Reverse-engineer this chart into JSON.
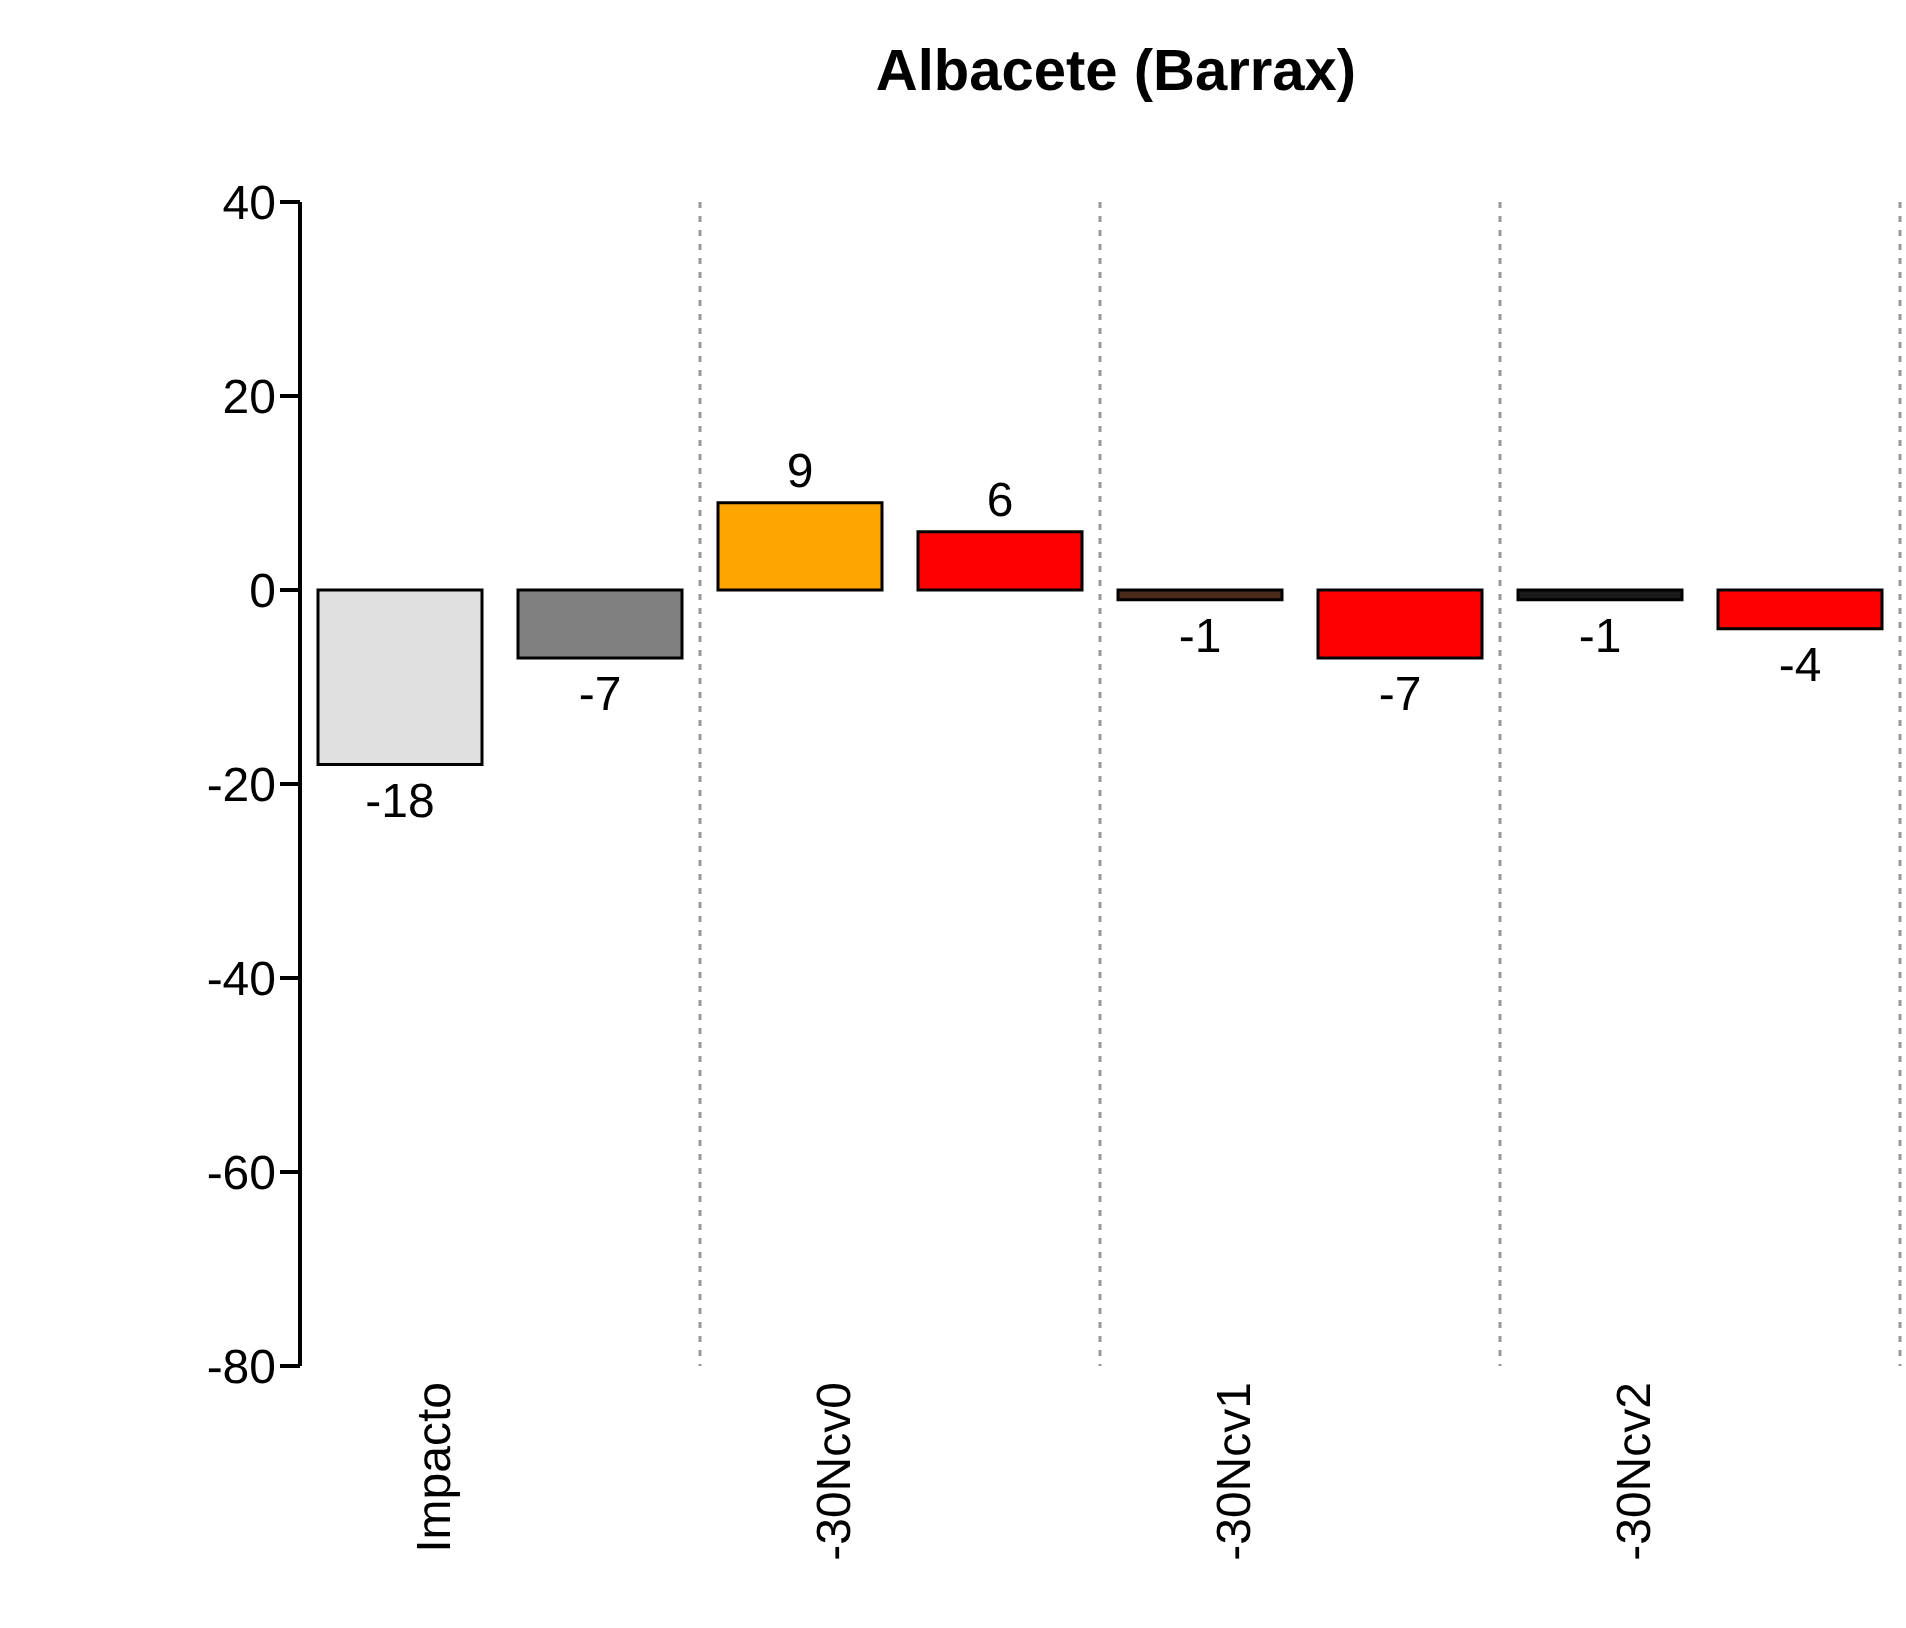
{
  "chart_data": {
    "type": "bar",
    "title": "Albacete (Barrax)",
    "categories": [
      "Impacto",
      null,
      "-30Ncv0",
      null,
      "-30Ncv1",
      null,
      "-30Ncv2",
      null
    ],
    "values": [
      -18,
      -7,
      9,
      6,
      -1,
      -7,
      -1,
      -4
    ],
    "colors": [
      "#e0e0e0",
      "#808080",
      "#ffa500",
      "#ff0000",
      "#4a2a1a",
      "#ff0000",
      "#1a1a1a",
      "#ff0000"
    ],
    "ylim": [
      -80,
      40
    ],
    "yticks": [
      -80,
      -60,
      -40,
      -20,
      0,
      20,
      40
    ],
    "grid": "x",
    "data_labels": true
  }
}
